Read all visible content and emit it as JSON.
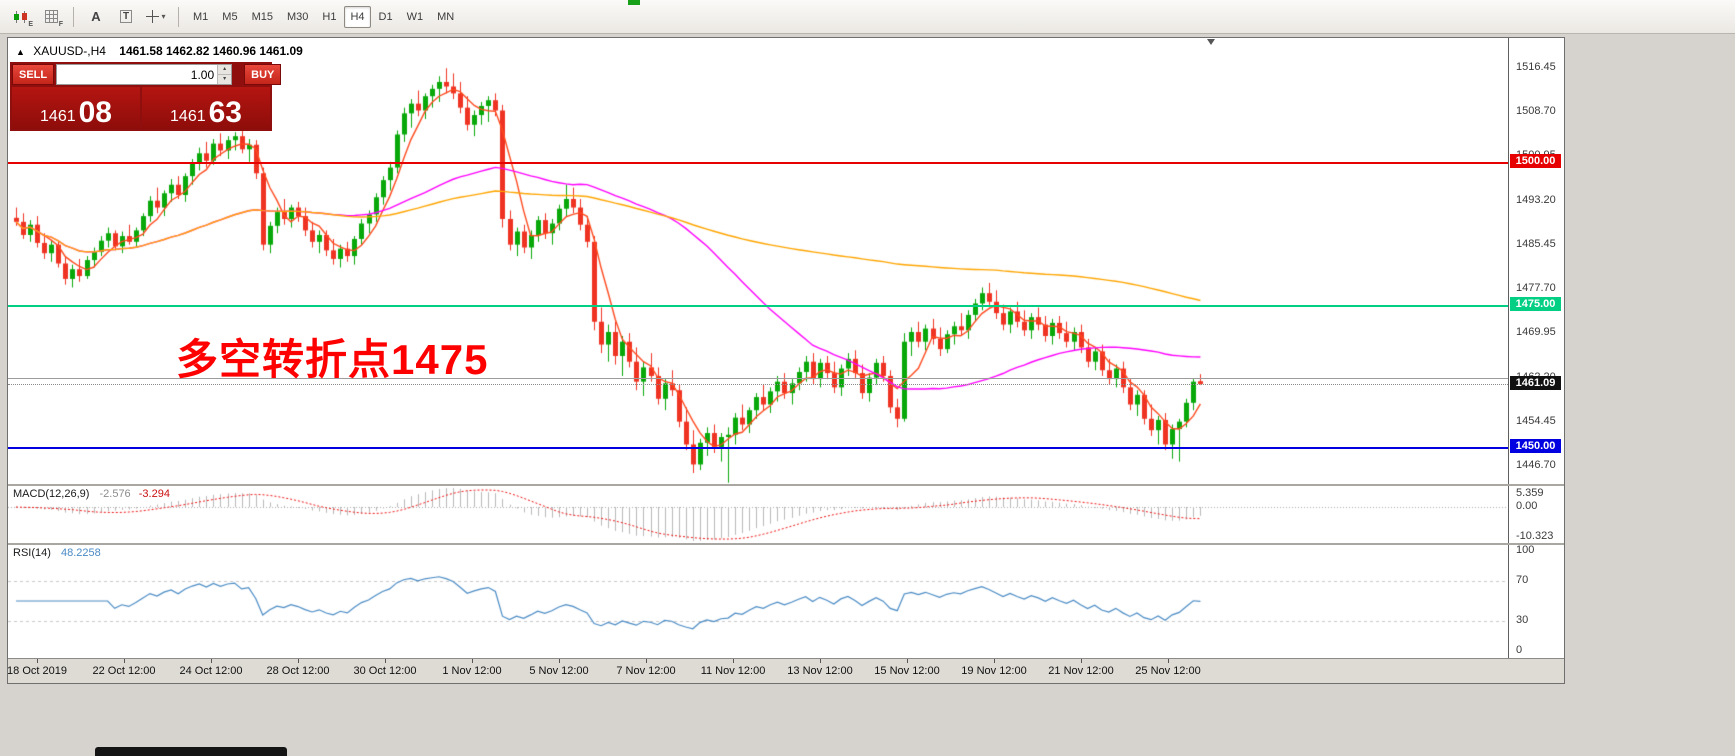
{
  "toolbar": {
    "icons": [
      {
        "name": "candlestick-chart-icon",
        "sub": "E"
      },
      {
        "name": "grid-icon",
        "sub": "F"
      },
      {
        "name": "annotation-text-icon",
        "glyph": "A"
      },
      {
        "name": "text-box-icon",
        "glyph": "T"
      },
      {
        "name": "crosshair-icon",
        "glyph": "+",
        "dropdown": "▾"
      }
    ],
    "timeframes": [
      "M1",
      "M5",
      "M15",
      "M30",
      "H1",
      "H4",
      "D1",
      "W1",
      "MN"
    ],
    "active_timeframe": "H4"
  },
  "chart_window": {
    "collapse_arrow": "▲",
    "title": "XAUUSD-,H4",
    "ohlc_text": "1461.58 1462.82 1460.96 1461.09",
    "trade_panel": {
      "sell_label": "SELL",
      "buy_label": "BUY",
      "volume": "1.00",
      "bid_main": "1461",
      "bid_big": "08",
      "ask_main": "1461",
      "ask_big": "63"
    }
  },
  "chart_data": {
    "type": "candlestick",
    "symbol": "XAUUSD-",
    "timeframe": "H4",
    "colors": {
      "up": "#08a80a",
      "down": "#ef3322"
    },
    "price_ticks": [
      1516.45,
      1508.7,
      1500.95,
      1493.2,
      1485.45,
      1477.7,
      1469.95,
      1462.2,
      1454.45,
      1446.7
    ],
    "time_labels": [
      "18 Oct 2019",
      "22 Oct 12:00",
      "24 Oct 12:00",
      "28 Oct 12:00",
      "30 Oct 12:00",
      "1 Nov 12:00",
      "5 Nov 12:00",
      "7 Nov 12:00",
      "11 Nov 12:00",
      "13 Nov 12:00",
      "15 Nov 12:00",
      "19 Nov 12:00",
      "21 Nov 12:00",
      "25 Nov 12:00"
    ],
    "hlines": [
      {
        "price": 1500.0,
        "label": "1500.00",
        "color": "#e60000",
        "width": 2
      },
      {
        "price": 1475.0,
        "label": "1475.00",
        "color": "#00cf84",
        "width": 2
      },
      {
        "price": 1462.15,
        "label": "",
        "color": "#9c9c9c",
        "width": 1
      },
      {
        "price": 1450.0,
        "label": "1450.00",
        "color": "#0000e0",
        "width": 2
      }
    ],
    "current_price": {
      "value": 1461.09,
      "label": "1461.09",
      "label_bg": "#111111"
    },
    "annotation": {
      "text": "多空转折点1475",
      "color": "#ff0000"
    },
    "moving_averages": [
      {
        "period": 5,
        "color": "#ff4a1e"
      },
      {
        "period": 45,
        "color": "#ff00ff"
      },
      {
        "period": 140,
        "color": "#ffa500"
      }
    ],
    "macd": {
      "label": "MACD(12,26,9)",
      "value": "-2.576",
      "signal_value": "-3.294",
      "scale": [
        "5.359",
        "0.00",
        "-10.323"
      ],
      "hist_color": "#b8b8b8",
      "signal_color": "#ee1111"
    },
    "rsi": {
      "label": "RSI(14)",
      "value": "48.2258",
      "scale": [
        "100",
        "70",
        "30",
        "0"
      ],
      "levels": [
        70,
        30
      ],
      "color": "#4a8bc4"
    },
    "ohlc": [
      [
        1490.2,
        1492.0,
        1488.8,
        1489.5
      ],
      [
        1489.5,
        1491.0,
        1486.5,
        1487.2
      ],
      [
        1487.2,
        1489.8,
        1486.0,
        1489.0
      ],
      [
        1489.0,
        1490.5,
        1485.0,
        1485.8
      ],
      [
        1485.8,
        1487.5,
        1483.0,
        1484.0
      ],
      [
        1484.0,
        1486.2,
        1482.5,
        1485.5
      ],
      [
        1485.5,
        1486.0,
        1481.5,
        1482.2
      ],
      [
        1482.2,
        1483.5,
        1478.5,
        1479.5
      ],
      [
        1479.5,
        1482.0,
        1478.0,
        1481.2
      ],
      [
        1481.2,
        1483.0,
        1479.0,
        1480.0
      ],
      [
        1480.0,
        1483.5,
        1479.5,
        1482.8
      ],
      [
        1482.8,
        1485.0,
        1481.5,
        1484.2
      ],
      [
        1484.2,
        1487.0,
        1483.5,
        1486.2
      ],
      [
        1486.2,
        1488.5,
        1485.0,
        1487.5
      ],
      [
        1487.5,
        1488.0,
        1484.5,
        1485.2
      ],
      [
        1485.2,
        1487.8,
        1484.0,
        1487.0
      ],
      [
        1487.0,
        1489.0,
        1485.5,
        1486.0
      ],
      [
        1486.0,
        1488.5,
        1485.0,
        1488.0
      ],
      [
        1488.0,
        1491.0,
        1487.0,
        1490.5
      ],
      [
        1490.5,
        1494.0,
        1489.5,
        1493.2
      ],
      [
        1493.2,
        1495.5,
        1491.0,
        1492.0
      ],
      [
        1492.0,
        1495.0,
        1490.5,
        1494.5
      ],
      [
        1494.5,
        1497.0,
        1493.0,
        1496.0
      ],
      [
        1496.0,
        1497.5,
        1493.5,
        1494.2
      ],
      [
        1494.2,
        1498.0,
        1493.0,
        1497.5
      ],
      [
        1497.5,
        1500.5,
        1496.0,
        1499.8
      ],
      [
        1499.8,
        1502.5,
        1498.5,
        1501.5
      ],
      [
        1501.5,
        1503.5,
        1499.0,
        1500.2
      ],
      [
        1500.2,
        1504.0,
        1499.5,
        1503.2
      ],
      [
        1503.2,
        1505.0,
        1501.0,
        1502.0
      ],
      [
        1502.0,
        1504.5,
        1500.5,
        1503.8
      ],
      [
        1503.8,
        1505.2,
        1502.0,
        1504.5
      ],
      [
        1504.5,
        1505.5,
        1501.5,
        1502.2
      ],
      [
        1502.2,
        1504.0,
        1500.0,
        1503.0
      ],
      [
        1503.0,
        1503.8,
        1497.0,
        1498.0
      ],
      [
        1498.0,
        1499.0,
        1484.5,
        1485.5
      ],
      [
        1485.5,
        1489.5,
        1484.0,
        1488.8
      ],
      [
        1488.8,
        1492.0,
        1487.5,
        1491.2
      ],
      [
        1491.2,
        1493.5,
        1489.0,
        1490.0
      ],
      [
        1490.0,
        1492.5,
        1488.5,
        1492.0
      ],
      [
        1492.0,
        1493.0,
        1489.5,
        1490.5
      ],
      [
        1490.5,
        1492.0,
        1487.0,
        1488.0
      ],
      [
        1488.0,
        1489.5,
        1485.0,
        1486.0
      ],
      [
        1486.0,
        1488.0,
        1484.0,
        1487.2
      ],
      [
        1487.2,
        1488.0,
        1483.5,
        1484.5
      ],
      [
        1484.5,
        1486.5,
        1482.0,
        1483.0
      ],
      [
        1483.0,
        1485.5,
        1481.5,
        1484.8
      ],
      [
        1484.8,
        1486.0,
        1482.5,
        1483.5
      ],
      [
        1483.5,
        1487.0,
        1482.0,
        1486.5
      ],
      [
        1486.5,
        1490.0,
        1485.5,
        1489.2
      ],
      [
        1489.2,
        1491.5,
        1487.5,
        1490.8
      ],
      [
        1490.8,
        1494.5,
        1489.5,
        1493.8
      ],
      [
        1493.8,
        1497.5,
        1492.5,
        1496.8
      ],
      [
        1496.8,
        1500.0,
        1495.0,
        1499.0
      ],
      [
        1499.0,
        1505.5,
        1498.0,
        1504.8
      ],
      [
        1504.8,
        1509.5,
        1503.5,
        1508.5
      ],
      [
        1508.5,
        1511.0,
        1506.0,
        1510.2
      ],
      [
        1510.2,
        1512.5,
        1508.0,
        1509.0
      ],
      [
        1509.0,
        1512.0,
        1507.5,
        1511.5
      ],
      [
        1511.5,
        1513.5,
        1509.5,
        1512.8
      ],
      [
        1512.8,
        1515.0,
        1510.5,
        1514.0
      ],
      [
        1514.0,
        1516.4,
        1512.0,
        1513.2
      ],
      [
        1513.2,
        1515.5,
        1511.0,
        1512.0
      ],
      [
        1512.0,
        1514.0,
        1508.5,
        1509.5
      ],
      [
        1509.5,
        1511.5,
        1505.5,
        1506.5
      ],
      [
        1506.5,
        1509.0,
        1504.5,
        1508.2
      ],
      [
        1508.2,
        1510.5,
        1506.5,
        1509.8
      ],
      [
        1509.8,
        1511.5,
        1507.0,
        1510.8
      ],
      [
        1510.8,
        1512.0,
        1508.0,
        1509.0
      ],
      [
        1509.0,
        1510.0,
        1488.5,
        1490.0
      ],
      [
        1490.0,
        1491.5,
        1484.5,
        1485.5
      ],
      [
        1485.5,
        1488.5,
        1483.5,
        1487.8
      ],
      [
        1487.8,
        1489.0,
        1484.0,
        1485.0
      ],
      [
        1485.0,
        1488.0,
        1483.0,
        1487.2
      ],
      [
        1487.2,
        1490.5,
        1486.0,
        1489.8
      ],
      [
        1489.8,
        1491.0,
        1486.5,
        1487.5
      ],
      [
        1487.5,
        1490.0,
        1485.5,
        1489.2
      ],
      [
        1489.2,
        1492.5,
        1488.0,
        1491.8
      ],
      [
        1491.8,
        1496.0,
        1490.5,
        1493.5
      ],
      [
        1493.5,
        1495.5,
        1491.0,
        1492.0
      ],
      [
        1492.0,
        1493.5,
        1488.0,
        1489.0
      ],
      [
        1489.0,
        1490.5,
        1485.0,
        1486.0
      ],
      [
        1486.0,
        1487.0,
        1470.5,
        1472.0
      ],
      [
        1472.0,
        1474.5,
        1466.5,
        1468.0
      ],
      [
        1468.0,
        1471.5,
        1465.0,
        1470.2
      ],
      [
        1470.2,
        1472.0,
        1464.5,
        1466.0
      ],
      [
        1466.0,
        1469.5,
        1462.5,
        1468.5
      ],
      [
        1468.5,
        1470.0,
        1464.0,
        1465.0
      ],
      [
        1465.0,
        1467.5,
        1460.0,
        1461.5
      ],
      [
        1461.5,
        1465.0,
        1459.0,
        1464.0
      ],
      [
        1464.0,
        1466.5,
        1461.5,
        1462.5
      ],
      [
        1462.5,
        1464.0,
        1457.5,
        1458.5
      ],
      [
        1458.5,
        1462.0,
        1456.5,
        1461.2
      ],
      [
        1461.2,
        1463.5,
        1459.0,
        1460.0
      ],
      [
        1460.0,
        1461.0,
        1453.5,
        1454.5
      ],
      [
        1454.5,
        1457.0,
        1449.5,
        1450.5
      ],
      [
        1450.5,
        1453.0,
        1445.5,
        1447.0
      ],
      [
        1447.0,
        1451.5,
        1446.0,
        1450.8
      ],
      [
        1450.8,
        1453.5,
        1448.5,
        1452.5
      ],
      [
        1452.5,
        1454.0,
        1449.0,
        1450.0
      ],
      [
        1450.0,
        1452.5,
        1447.5,
        1451.8
      ],
      [
        1451.8,
        1453.5,
        1443.8,
        1452.2
      ],
      [
        1452.2,
        1456.0,
        1450.5,
        1455.2
      ],
      [
        1455.2,
        1457.5,
        1453.0,
        1454.0
      ],
      [
        1454.0,
        1457.0,
        1452.5,
        1456.5
      ],
      [
        1456.5,
        1459.5,
        1455.0,
        1458.8
      ],
      [
        1458.8,
        1461.0,
        1456.5,
        1457.5
      ],
      [
        1457.5,
        1460.5,
        1456.0,
        1459.8
      ],
      [
        1459.8,
        1462.5,
        1458.0,
        1461.5
      ],
      [
        1461.5,
        1463.0,
        1458.5,
        1459.5
      ],
      [
        1459.5,
        1462.0,
        1457.5,
        1461.2
      ],
      [
        1461.2,
        1464.0,
        1460.0,
        1463.2
      ],
      [
        1463.2,
        1466.0,
        1461.5,
        1465.0
      ],
      [
        1465.0,
        1466.5,
        1461.0,
        1462.0
      ],
      [
        1462.0,
        1465.5,
        1460.5,
        1464.8
      ],
      [
        1464.8,
        1466.0,
        1462.0,
        1463.0
      ],
      [
        1463.0,
        1465.0,
        1459.5,
        1460.5
      ],
      [
        1460.5,
        1464.5,
        1459.0,
        1463.8
      ],
      [
        1463.8,
        1466.5,
        1462.5,
        1465.5
      ],
      [
        1465.5,
        1467.0,
        1462.0,
        1463.0
      ],
      [
        1463.0,
        1464.5,
        1458.5,
        1459.5
      ],
      [
        1459.5,
        1463.0,
        1458.0,
        1462.2
      ],
      [
        1462.2,
        1465.5,
        1461.0,
        1464.8
      ],
      [
        1464.8,
        1466.0,
        1461.5,
        1462.5
      ],
      [
        1462.5,
        1463.5,
        1456.0,
        1457.0
      ],
      [
        1457.0,
        1458.5,
        1453.5,
        1455.0
      ],
      [
        1455.0,
        1470.0,
        1454.5,
        1468.5
      ],
      [
        1468.5,
        1471.0,
        1466.0,
        1470.2
      ],
      [
        1470.2,
        1472.0,
        1467.5,
        1468.5
      ],
      [
        1468.5,
        1471.5,
        1467.0,
        1470.8
      ],
      [
        1470.8,
        1472.5,
        1468.0,
        1469.0
      ],
      [
        1469.0,
        1471.0,
        1466.0,
        1467.2
      ],
      [
        1467.2,
        1470.5,
        1466.5,
        1469.8
      ],
      [
        1469.8,
        1472.0,
        1468.0,
        1471.2
      ],
      [
        1471.2,
        1473.5,
        1469.5,
        1470.5
      ],
      [
        1470.5,
        1474.0,
        1469.0,
        1473.2
      ],
      [
        1473.2,
        1476.0,
        1472.0,
        1475.2
      ],
      [
        1475.2,
        1478.0,
        1474.0,
        1477.0
      ],
      [
        1477.0,
        1478.8,
        1474.5,
        1475.5
      ],
      [
        1475.5,
        1477.5,
        1472.5,
        1473.5
      ],
      [
        1473.5,
        1475.0,
        1470.5,
        1471.5
      ],
      [
        1471.5,
        1474.5,
        1470.0,
        1473.8
      ],
      [
        1473.8,
        1475.5,
        1471.0,
        1472.0
      ],
      [
        1472.0,
        1474.0,
        1469.5,
        1470.5
      ],
      [
        1470.5,
        1473.5,
        1469.0,
        1472.8
      ],
      [
        1472.8,
        1474.5,
        1470.5,
        1471.5
      ],
      [
        1471.5,
        1473.0,
        1468.5,
        1469.5
      ],
      [
        1469.5,
        1472.5,
        1468.0,
        1471.8
      ],
      [
        1471.8,
        1473.0,
        1469.0,
        1470.0
      ],
      [
        1470.0,
        1472.0,
        1467.5,
        1468.5
      ],
      [
        1468.5,
        1471.0,
        1467.0,
        1470.2
      ],
      [
        1470.2,
        1471.5,
        1466.5,
        1467.5
      ],
      [
        1467.5,
        1469.0,
        1464.0,
        1465.0
      ],
      [
        1465.0,
        1467.5,
        1463.5,
        1466.8
      ],
      [
        1466.8,
        1468.0,
        1462.5,
        1463.5
      ],
      [
        1463.5,
        1465.5,
        1461.0,
        1462.0
      ],
      [
        1462.0,
        1464.5,
        1460.5,
        1463.8
      ],
      [
        1463.8,
        1465.0,
        1459.5,
        1460.5
      ],
      [
        1460.5,
        1462.0,
        1456.5,
        1457.5
      ],
      [
        1457.5,
        1460.0,
        1455.5,
        1459.2
      ],
      [
        1459.2,
        1460.0,
        1454.0,
        1455.0
      ],
      [
        1455.0,
        1457.5,
        1452.0,
        1453.0
      ],
      [
        1453.0,
        1455.5,
        1450.5,
        1454.8
      ],
      [
        1454.8,
        1456.0,
        1449.5,
        1450.5
      ],
      [
        1450.5,
        1454.0,
        1448.0,
        1453.2
      ],
      [
        1453.2,
        1455.0,
        1447.5,
        1454.5
      ],
      [
        1454.5,
        1458.5,
        1453.5,
        1457.8
      ],
      [
        1457.8,
        1462.0,
        1456.5,
        1461.5
      ],
      [
        1461.58,
        1462.82,
        1460.96,
        1461.09
      ]
    ]
  }
}
